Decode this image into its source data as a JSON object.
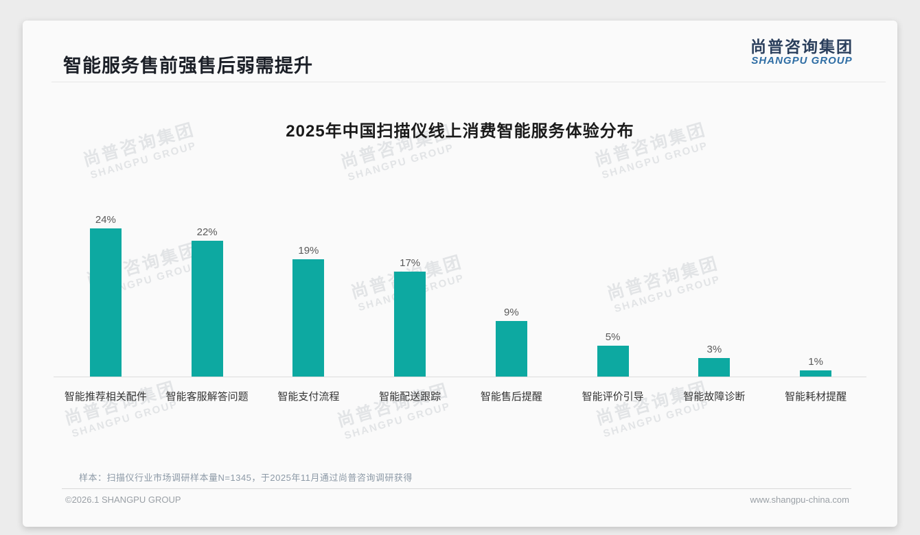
{
  "page": {
    "title": "智能服务售前强售后弱需提升",
    "logo": {
      "cn": "尚普咨询集团",
      "en": "SHANGPU GROUP"
    },
    "watermark": {
      "cn": "尚普咨询集团",
      "en": "SHANGPU GROUP"
    },
    "note": "样本：扫描仪行业市场调研样本量N=1345，于2025年11月通过尚普咨询调研获得",
    "footer_left": "©2026.1 SHANGPU GROUP",
    "footer_right": "www.shangpu-china.com"
  },
  "colors": {
    "bar": "#0DA9A1",
    "page_title": "#1b1f27",
    "logo_cn": "#2b3f5c",
    "logo_en": "#2e6da4",
    "note_text": "#8c99a6",
    "footer_text": "#9aa0a6"
  },
  "chart_data": {
    "type": "bar",
    "title": "2025年中国扫描仪线上消费智能服务体验分布",
    "categories": [
      "智能推荐相关配件",
      "智能客服解答问题",
      "智能支付流程",
      "智能配送跟踪",
      "智能售后提醒",
      "智能评价引导",
      "智能故障诊断",
      "智能耗材提醒"
    ],
    "values": [
      24,
      22,
      19,
      17,
      9,
      5,
      3,
      1
    ],
    "value_labels": [
      "24%",
      "22%",
      "19%",
      "17%",
      "9%",
      "5%",
      "3%",
      "1%"
    ],
    "unit": "%",
    "bar_color": "#0DA9A1",
    "xlabel": "",
    "ylabel": "",
    "ylim": [
      0,
      26
    ],
    "grid": false,
    "legend": false,
    "value_labels_shown": true
  }
}
